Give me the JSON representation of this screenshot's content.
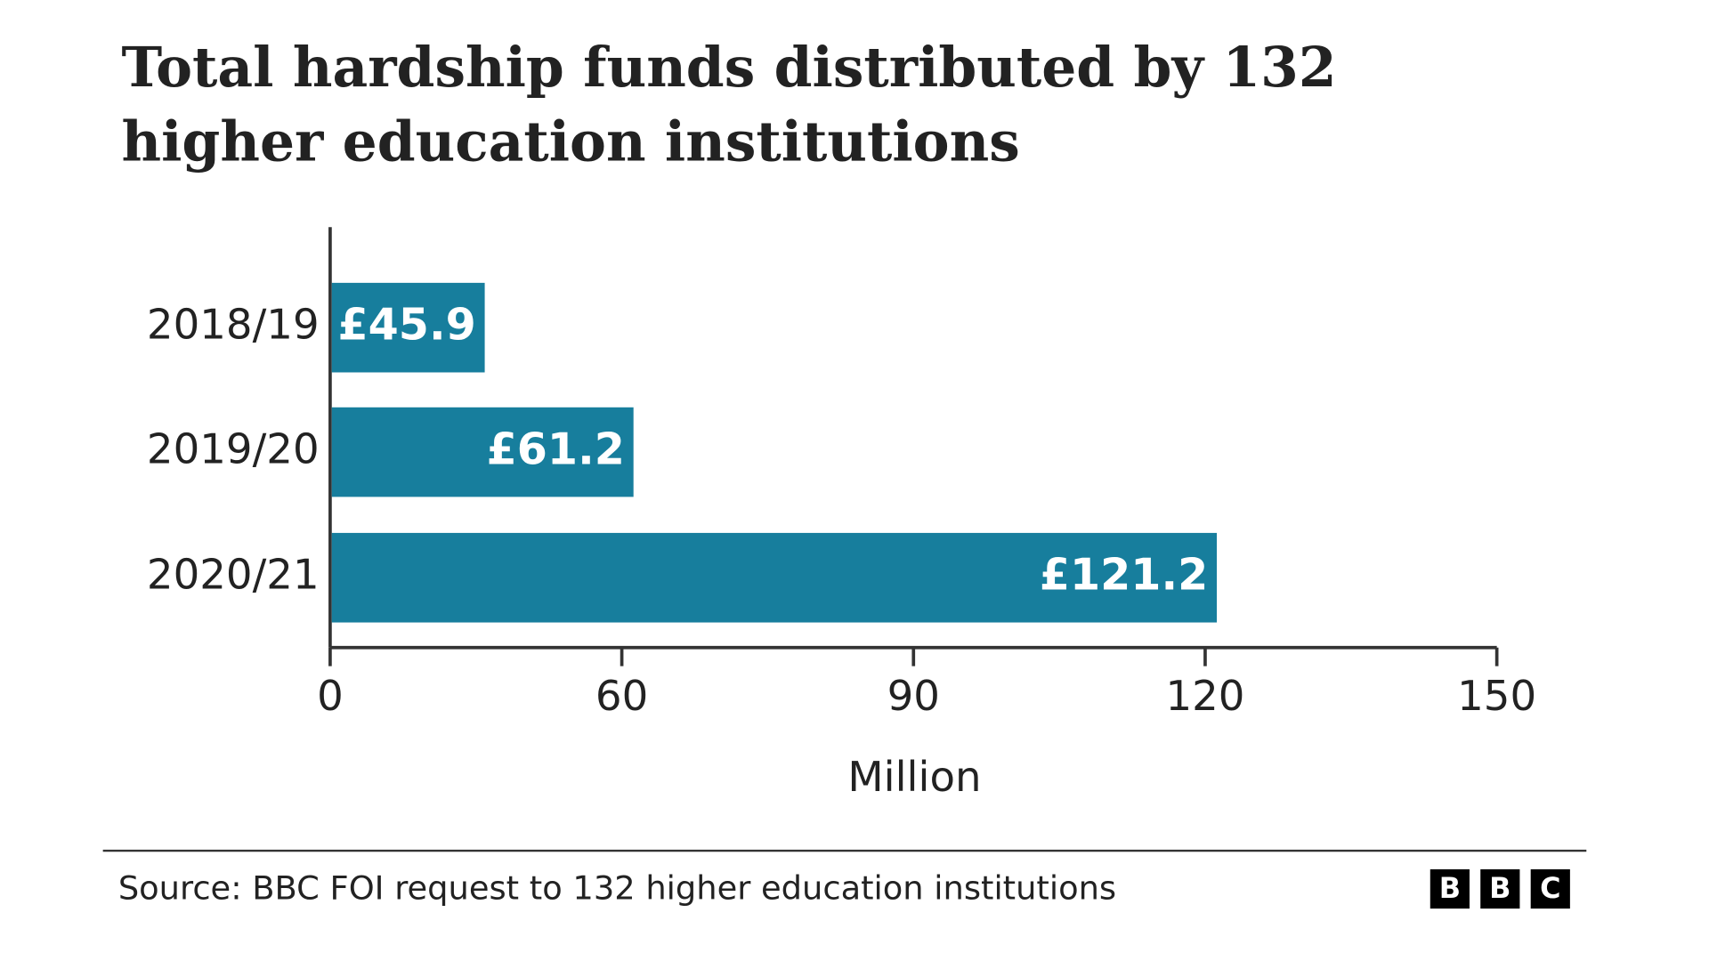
{
  "chart_data": {
    "type": "bar",
    "orientation": "horizontal",
    "title": "Total hardship funds distributed by 132 higher education institutions",
    "categories": [
      "2018/19",
      "2019/20",
      "2020/21"
    ],
    "values": [
      45.9,
      61.2,
      121.2
    ],
    "value_labels": [
      "£45.9",
      "£61.2",
      "£121.2"
    ],
    "color": "#177e9d",
    "xlim": [
      30,
      150
    ],
    "xticks": [
      {
        "value": 30,
        "label": "0"
      },
      60,
      90,
      120,
      150
    ],
    "xlabel": "Million",
    "source": "Source: BBC FOI request to 132 higher education institutions",
    "logo": [
      "B",
      "B",
      "C"
    ]
  }
}
